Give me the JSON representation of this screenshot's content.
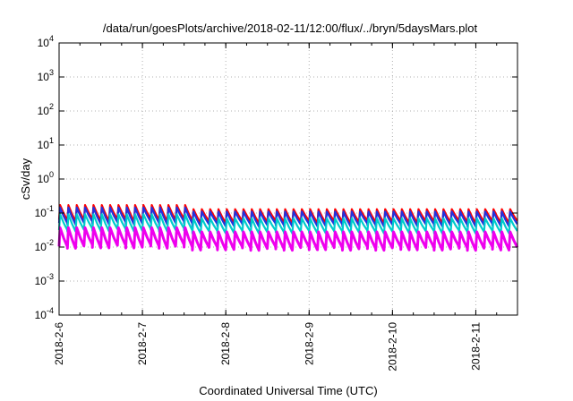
{
  "chart_data": {
    "type": "line",
    "title": "/data/run/goesPlots/archive/2018-02-11/12:00/flux/../bryn/5daysMars.plot",
    "xlabel": "Coordinated Universal Time (UTC)",
    "ylabel": "cSv/day",
    "yscale": "log",
    "ylim": [
      0.0001,
      10000
    ],
    "y_ticks": [
      {
        "base": "10",
        "exp": "-4"
      },
      {
        "base": "10",
        "exp": "-3"
      },
      {
        "base": "10",
        "exp": "-2"
      },
      {
        "base": "10",
        "exp": "-1"
      },
      {
        "base": "10",
        "exp": "0"
      },
      {
        "base": "10",
        "exp": "1"
      },
      {
        "base": "10",
        "exp": "2"
      },
      {
        "base": "10",
        "exp": "3"
      },
      {
        "base": "10",
        "exp": "4"
      }
    ],
    "x_range": [
      "2018-02-06T00:00",
      "2018-02-11T12:00"
    ],
    "x_ticks": [
      "2018-2-6",
      "2018-2-7",
      "2018-2-8",
      "2018-2-9",
      "2018-2-10",
      "2018-2-11"
    ],
    "grid": true,
    "legend": "none",
    "pattern": "sawtooth with about 10 cycles per day",
    "series": [
      {
        "color": "#ff0000",
        "peak": 0.13,
        "trough": 0.05
      },
      {
        "color": "#2233dd",
        "peak": 0.11,
        "trough": 0.04
      },
      {
        "color": "#00cccc",
        "peak": 0.07,
        "trough": 0.025
      },
      {
        "color": "#ee00ee",
        "peak": 0.028,
        "trough": 0.008
      }
    ]
  }
}
